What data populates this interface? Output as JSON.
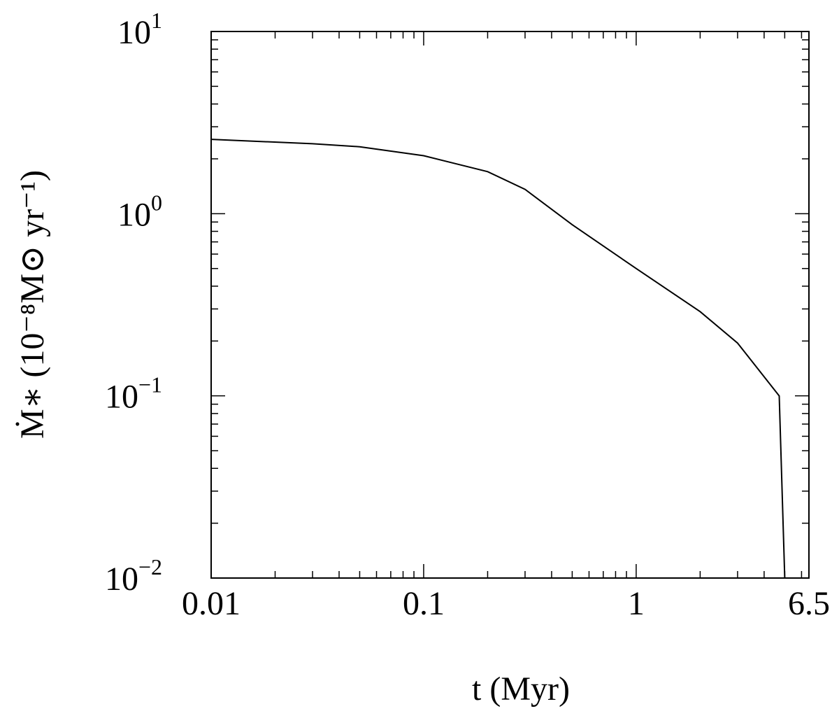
{
  "chart_data": {
    "type": "line",
    "x_label": "t (Myr)",
    "y_label": "Ṁ∗ (10⁻⁸M⊙ yr⁻¹)",
    "x": [
      0.01,
      0.03,
      0.05,
      0.1,
      0.2,
      0.3,
      0.5,
      1,
      2,
      3,
      4.71,
      5.0
    ],
    "series": [
      {
        "color": "#000000",
        "values": [
          2.56,
          2.42,
          2.33,
          2.08,
          1.7,
          1.36,
          0.87,
          0.5,
          0.29,
          0.195,
          0.1,
          0.01
        ]
      }
    ],
    "xscale": "log",
    "yscale": "log",
    "xlim": [
      0.01,
      6.5
    ],
    "ylim": [
      0.01,
      10
    ],
    "xticks": [
      0.01,
      0.1,
      1,
      6.5
    ],
    "yticks": [
      {
        "value": 10,
        "label": "10",
        "exponent": "1"
      },
      {
        "value": 1,
        "label": "10",
        "exponent": "0"
      },
      {
        "value": 0.1,
        "label": "10",
        "exponent": "−1"
      },
      {
        "value": 0.01,
        "label": "10",
        "exponent": "−2"
      }
    ],
    "grid": false
  }
}
